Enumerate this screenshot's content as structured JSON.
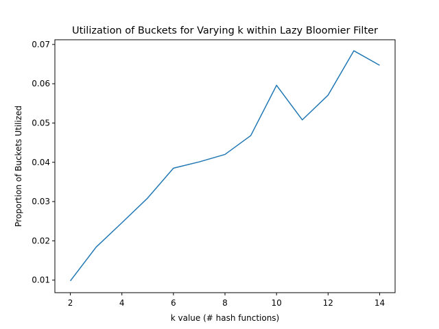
{
  "chart_data": {
    "type": "line",
    "title": "Utilization of Buckets for Varying k within Lazy Bloomier Filter",
    "xlabel": "k value (# hash functions)",
    "ylabel": "Proportion of Buckets Utilized",
    "xlim": [
      1.4,
      14.6
    ],
    "ylim": [
      0.0068,
      0.0712
    ],
    "xticks": [
      2,
      4,
      6,
      8,
      10,
      12,
      14
    ],
    "yticks": [
      0.01,
      0.02,
      0.03,
      0.04,
      0.05,
      0.06,
      0.07
    ],
    "ytick_labels": [
      "0.01",
      "0.02",
      "0.03",
      "0.04",
      "0.05",
      "0.06",
      "0.07"
    ],
    "grid": false,
    "series": [
      {
        "color": "#1f77b4",
        "x": [
          2,
          3,
          4,
          5,
          6,
          7,
          8,
          9,
          10,
          11,
          12,
          13,
          14
        ],
        "y": [
          0.0098,
          0.0184,
          0.0246,
          0.0309,
          0.0385,
          0.0401,
          0.042,
          0.0468,
          0.0596,
          0.0508,
          0.0571,
          0.0684,
          0.0647
        ]
      }
    ]
  }
}
